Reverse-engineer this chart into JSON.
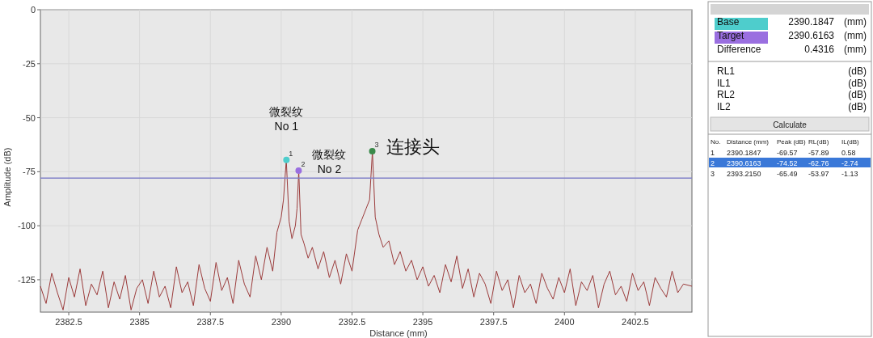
{
  "chart_data": [
    {
      "type": "line",
      "xlabel": "Distance (mm)",
      "ylabel": "Amplitude (dB)",
      "xlim": [
        2381.5,
        2404.5
      ],
      "ylim": [
        -140,
        0
      ],
      "xticks": [
        2382.5,
        2385,
        2387.5,
        2390,
        2392.5,
        2395,
        2397.5,
        2400,
        2402.5
      ],
      "yticks": [
        0,
        -25,
        -50,
        -75,
        -100,
        -125
      ],
      "grid": true,
      "series": [
        {
          "color": "#9b3b3b",
          "x": [
            2381.5,
            2381.7,
            2381.9,
            2382.1,
            2382.3,
            2382.5,
            2382.7,
            2382.9,
            2383.1,
            2383.3,
            2383.5,
            2383.7,
            2383.9,
            2384.1,
            2384.3,
            2384.5,
            2384.7,
            2384.9,
            2385.1,
            2385.3,
            2385.5,
            2385.7,
            2385.9,
            2386.1,
            2386.3,
            2386.5,
            2386.7,
            2386.9,
            2387.1,
            2387.3,
            2387.5,
            2387.7,
            2387.9,
            2388.1,
            2388.3,
            2388.5,
            2388.7,
            2388.9,
            2389.1,
            2389.3,
            2389.5,
            2389.7,
            2389.85,
            2390.0,
            2390.08,
            2390.18,
            2390.28,
            2390.38,
            2390.5,
            2390.56,
            2390.62,
            2390.7,
            2390.8,
            2390.95,
            2391.1,
            2391.3,
            2391.5,
            2391.7,
            2391.9,
            2392.1,
            2392.3,
            2392.5,
            2392.7,
            2392.85,
            2393.0,
            2393.12,
            2393.22,
            2393.32,
            2393.45,
            2393.6,
            2393.8,
            2394.0,
            2394.2,
            2394.4,
            2394.6,
            2394.8,
            2395.0,
            2395.2,
            2395.4,
            2395.6,
            2395.8,
            2396.0,
            2396.2,
            2396.4,
            2396.6,
            2396.8,
            2397.0,
            2397.2,
            2397.4,
            2397.6,
            2397.8,
            2398.0,
            2398.2,
            2398.4,
            2398.6,
            2398.8,
            2399.0,
            2399.2,
            2399.4,
            2399.6,
            2399.8,
            2400.0,
            2400.2,
            2400.4,
            2400.6,
            2400.8,
            2401.0,
            2401.2,
            2401.4,
            2401.6,
            2401.8,
            2402.0,
            2402.2,
            2402.4,
            2402.6,
            2402.8,
            2403.0,
            2403.2,
            2403.4,
            2403.6,
            2403.8,
            2404.0,
            2404.2,
            2404.5
          ],
          "values": [
            -128,
            -136,
            -122,
            -131,
            -139,
            -124,
            -133,
            -120,
            -137,
            -127,
            -132,
            -121,
            -138,
            -126,
            -134,
            -123,
            -139,
            -129,
            -125,
            -136,
            -121,
            -133,
            -128,
            -138,
            -119,
            -131,
            -126,
            -137,
            -118,
            -129,
            -135,
            -117,
            -130,
            -124,
            -136,
            -116,
            -127,
            -133,
            -114,
            -125,
            -110,
            -121,
            -103,
            -96,
            -88,
            -69.57,
            -98,
            -106,
            -100,
            -92,
            -74.52,
            -104,
            -108,
            -115,
            -110,
            -120,
            -112,
            -124,
            -116,
            -127,
            -113,
            -121,
            -102,
            -97,
            -92,
            -88,
            -65.49,
            -96,
            -104,
            -110,
            -107,
            -118,
            -112,
            -121,
            -116,
            -125,
            -119,
            -128,
            -123,
            -131,
            -118,
            -126,
            -114,
            -129,
            -120,
            -133,
            -122,
            -127,
            -136,
            -121,
            -130,
            -125,
            -138,
            -123,
            -131,
            -127,
            -136,
            -122,
            -129,
            -134,
            -124,
            -131,
            -120,
            -137,
            -126,
            -130,
            -123,
            -138,
            -127,
            -121,
            -132,
            -128,
            -135,
            -122,
            -130,
            -126,
            -137,
            -124,
            -129,
            -133,
            -121,
            -131,
            -127,
            -128
          ]
        },
        {
          "type": "scatter",
          "x": [
            2390.1847,
            2390.6163,
            2393.215
          ],
          "values": [
            -69.57,
            -74.52,
            -65.49
          ],
          "colors": [
            "#4ecdcc",
            "#9a6fe0",
            "#3a8a4a"
          ]
        }
      ],
      "ref_lines": [
        {
          "axis": "y",
          "value": -78,
          "color": "#8080c8"
        }
      ],
      "annotations": [
        {
          "text": "1",
          "x": 2390.1847,
          "y": -69.57
        },
        {
          "text": "2",
          "x": 2390.6163,
          "y": -74.52
        },
        {
          "text": "3",
          "x": 2393.215,
          "y": -65.49
        },
        {
          "text": "微裂纹\nNo 1",
          "x": 2390.1847,
          "y": -69.57
        },
        {
          "text": "微裂纹\nNo 2",
          "x": 2390.6163,
          "y": -74.52
        },
        {
          "text": "连接头",
          "x": 2393.215,
          "y": -65.49
        }
      ]
    },
    {
      "type": "other",
      "annotations": [
        "Base",
        "2390.1847",
        "(mm)",
        "Target",
        "2390.6163",
        "(mm)",
        "Difference",
        "0.4316",
        "(mm)",
        "RL1",
        "(dB)",
        "IL1",
        "(dB)",
        "RL2",
        "(dB)",
        "IL2",
        "(dB)",
        "Calculate",
        "No.",
        "Distance (mm)",
        "Peak (dB)",
        "RL(dB)",
        "IL(dB)",
        "1",
        "2390.1847",
        "-69.57",
        "-57.89",
        "0.58",
        "2",
        "2390.6163",
        "-74.52",
        "-62.76",
        "-2.74",
        "3",
        "2393.2150",
        "-65.49",
        "-53.97",
        "-1.13"
      ]
    }
  ]
}
